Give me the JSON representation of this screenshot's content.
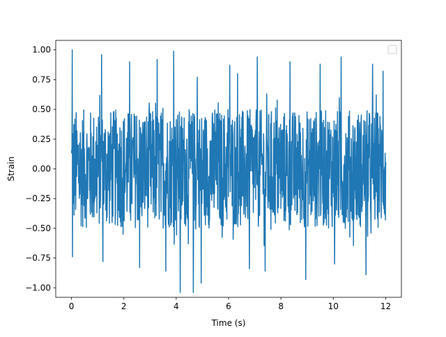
{
  "chart_data": {
    "type": "line",
    "title": "",
    "xlabel": "Time (s)",
    "ylabel": "Strain",
    "xlim": [
      -0.6,
      12.6
    ],
    "ylim": [
      -1.08,
      1.08
    ],
    "xticks": [
      0,
      2,
      4,
      6,
      8,
      10,
      12
    ],
    "xtick_labels": [
      "0",
      "2",
      "4",
      "6",
      "8",
      "10",
      "12"
    ],
    "yticks": [
      -1.0,
      -0.75,
      -0.5,
      -0.25,
      0.0,
      0.25,
      0.5,
      0.75,
      1.0
    ],
    "ytick_labels": [
      "−1.00",
      "−0.75",
      "−0.50",
      "−0.25",
      "0.00",
      "0.25",
      "0.50",
      "0.75",
      "1.00"
    ],
    "grid": false,
    "legend": {
      "placement": "upper-right",
      "entries": []
    },
    "series": [
      {
        "color": "#1f77b4",
        "x_range": [
          0,
          12
        ],
        "sample_count": 1200,
        "description": "dense noise signal, roughly uniform amplitude",
        "typical_range": [
          -0.5,
          0.5
        ],
        "peaks": [
          {
            "x": 0.03,
            "y": 1.0
          },
          {
            "x": 0.04,
            "y": -0.74
          },
          {
            "x": 1.15,
            "y": 0.96
          },
          {
            "x": 1.2,
            "y": -0.78
          },
          {
            "x": 2.22,
            "y": 0.9
          },
          {
            "x": 2.6,
            "y": -0.83
          },
          {
            "x": 3.27,
            "y": 0.92
          },
          {
            "x": 3.6,
            "y": -0.86
          },
          {
            "x": 3.9,
            "y": 0.99
          },
          {
            "x": 4.15,
            "y": -1.04
          },
          {
            "x": 4.65,
            "y": -1.04
          },
          {
            "x": 4.8,
            "y": 0.77
          },
          {
            "x": 4.95,
            "y": -0.96
          },
          {
            "x": 6.05,
            "y": 0.87
          },
          {
            "x": 6.35,
            "y": 0.8
          },
          {
            "x": 6.8,
            "y": -0.84
          },
          {
            "x": 7.1,
            "y": 0.94
          },
          {
            "x": 7.4,
            "y": -0.86
          },
          {
            "x": 8.35,
            "y": 0.9
          },
          {
            "x": 8.95,
            "y": -0.93
          },
          {
            "x": 9.5,
            "y": 0.88
          },
          {
            "x": 10.3,
            "y": 0.94
          },
          {
            "x": 10.05,
            "y": -0.8
          },
          {
            "x": 11.25,
            "y": -0.89
          },
          {
            "x": 11.5,
            "y": 0.88
          },
          {
            "x": 11.9,
            "y": 0.82
          }
        ]
      }
    ]
  }
}
